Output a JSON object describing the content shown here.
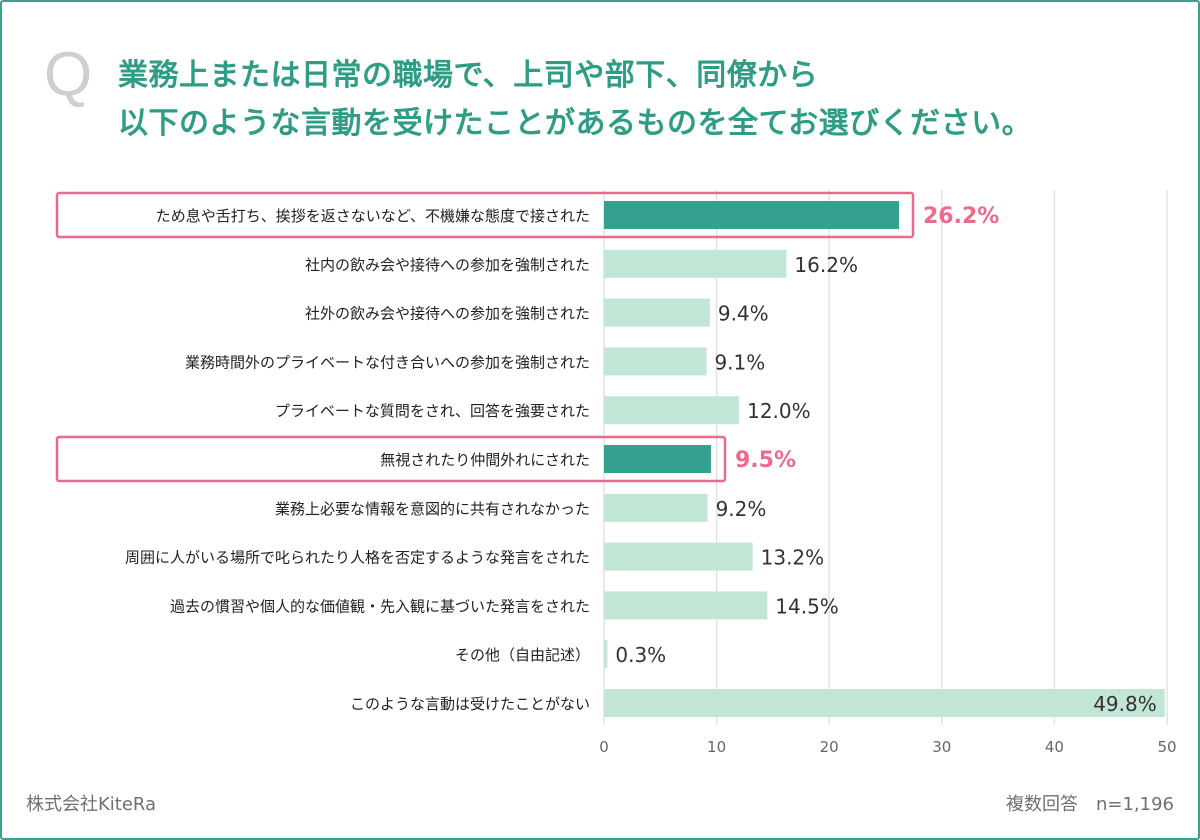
{
  "question_mark": "Q",
  "title_lines": [
    "業務上または日常の職場で、上司や部下、同僚から",
    "以下のような言動を受けたことがあるものを全てお選びください。"
  ],
  "footer": {
    "company": "株式会社KiteRa",
    "note": "複数回答　n=1,196"
  },
  "colors": {
    "highlight_bar": "#34a08e",
    "normal_bar": "#c2e6d6",
    "highlight_box": "#ec6b8c",
    "highlight_text": "#ec6b8c",
    "title": "#2f9c86",
    "frame": "#3aa08f"
  },
  "chart_data": {
    "type": "bar",
    "orientation": "horizontal",
    "categories": [
      "ため息や舌打ち、挨拶を返さないなど、不機嫌な態度で接された",
      "社内の飲み会や接待への参加を強制された",
      "社外の飲み会や接待への参加を強制された",
      "業務時間外のプライベートな付き合いへの参加を強制された",
      "プライベートな質問をされ、回答を強要された",
      "無視されたり仲間外れにされた",
      "業務上必要な情報を意図的に共有されなかった",
      "周囲に人がいる場所で叱られたり人格を否定するような発言をされた",
      "過去の慣習や個人的な価値観・先入観に基づいた発言をされた",
      "その他（自由記述）",
      "このような言動は受けたことがない"
    ],
    "values": [
      26.2,
      16.2,
      9.4,
      9.1,
      12.0,
      9.5,
      9.2,
      13.2,
      14.5,
      0.3,
      49.8
    ],
    "value_labels": [
      "26.2%",
      "16.2%",
      "9.4%",
      "9.1%",
      "12.0%",
      "9.5%",
      "9.2%",
      "13.2%",
      "14.5%",
      "0.3%",
      "49.8%"
    ],
    "highlighted": [
      0,
      5
    ],
    "xlim": [
      0,
      50
    ],
    "xticks": [
      "0",
      "10",
      "20",
      "30",
      "40",
      "50"
    ],
    "grid": true
  }
}
